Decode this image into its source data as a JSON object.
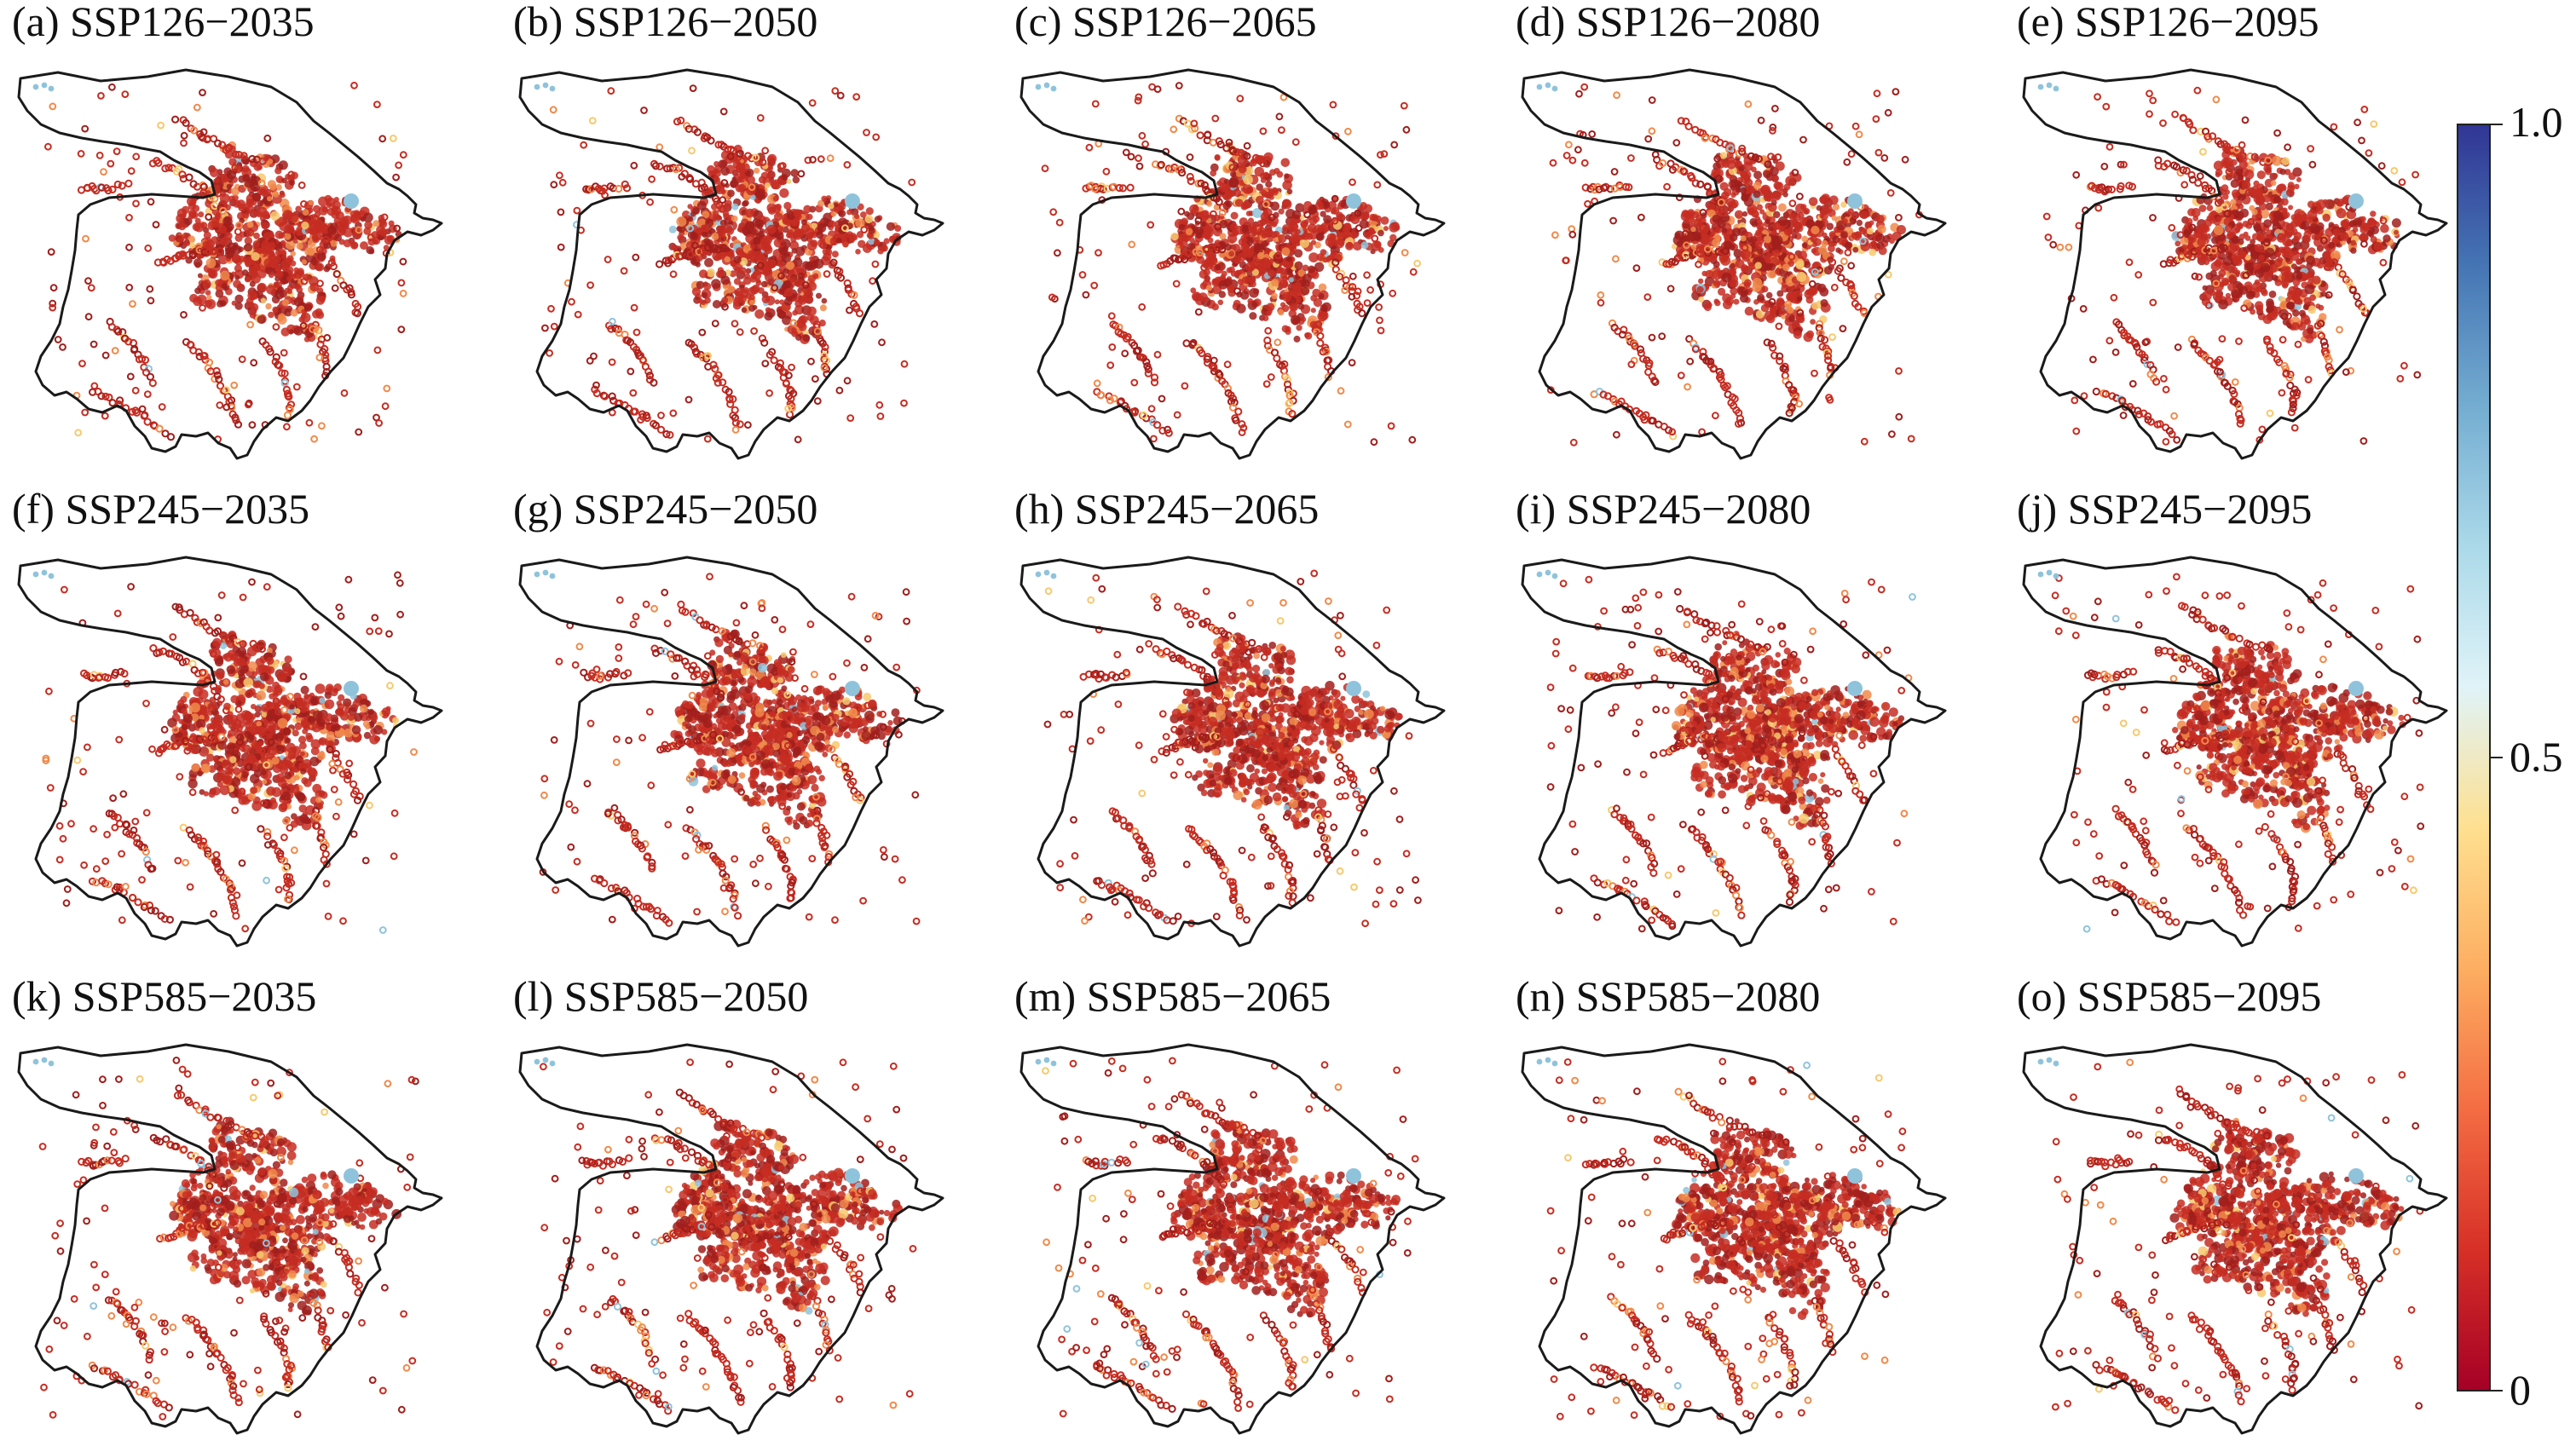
{
  "panels": [
    {
      "label": "(a) SSP126−2035",
      "scenario": "SSP126",
      "year": "2035"
    },
    {
      "label": "(b) SSP126−2050",
      "scenario": "SSP126",
      "year": "2050"
    },
    {
      "label": "(c) SSP126−2065",
      "scenario": "SSP126",
      "year": "2065"
    },
    {
      "label": "(d) SSP126−2080",
      "scenario": "SSP126",
      "year": "2080"
    },
    {
      "label": "(e) SSP126−2095",
      "scenario": "SSP126",
      "year": "2095"
    },
    {
      "label": "(f) SSP245−2035",
      "scenario": "SSP245",
      "year": "2035"
    },
    {
      "label": "(g) SSP245−2050",
      "scenario": "SSP245",
      "year": "2050"
    },
    {
      "label": "(h) SSP245−2065",
      "scenario": "SSP245",
      "year": "2065"
    },
    {
      "label": "(i) SSP245−2080",
      "scenario": "SSP245",
      "year": "2080"
    },
    {
      "label": "(j) SSP245−2095",
      "scenario": "SSP245",
      "year": "2095"
    },
    {
      "label": "(k) SSP585−2035",
      "scenario": "SSP585",
      "year": "2035"
    },
    {
      "label": "(l) SSP585−2050",
      "scenario": "SSP585",
      "year": "2050"
    },
    {
      "label": "(m) SSP585−2065",
      "scenario": "SSP585",
      "year": "2065"
    },
    {
      "label": "(n) SSP585−2080",
      "scenario": "SSP585",
      "year": "2080"
    },
    {
      "label": "(o) SSP585−2095",
      "scenario": "SSP585",
      "year": "2095"
    }
  ],
  "colorbar": {
    "ticks": [
      "0",
      "0.5",
      "1.0"
    ],
    "colors": [
      "#a50026",
      "#d73027",
      "#f46d43",
      "#fdae61",
      "#fee090",
      "#e0f3f8",
      "#abd9e9",
      "#74add1",
      "#4575b4",
      "#313695"
    ]
  },
  "colors": {
    "outline": "#1a1a1a",
    "dot_main": "#c62d22",
    "dot_dark": "#a01f1c",
    "dot_orange": "#f08a4b",
    "dot_light": "#f7c96e",
    "dot_blue": "#8fc3db"
  }
}
